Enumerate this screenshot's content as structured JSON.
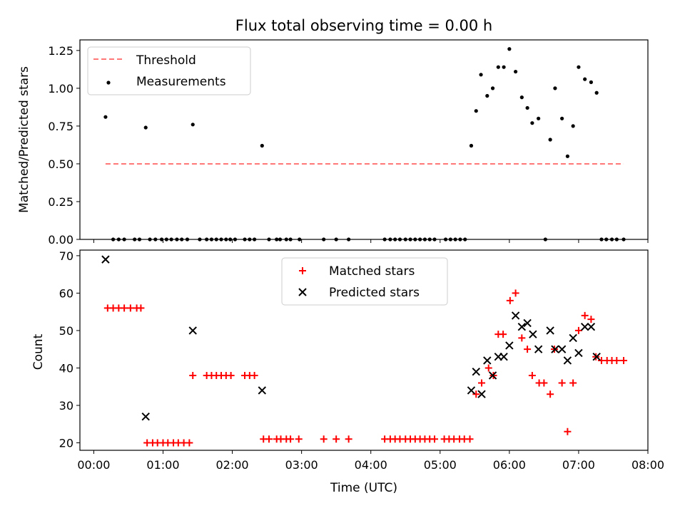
{
  "chart_data": [
    {
      "type": "scatter",
      "title": "Flux total observing time = 0.00 h",
      "xlabel": "",
      "ylabel": "Matched/Predicted stars",
      "xlim": [
        -0.2,
        8.0
      ],
      "ylim": [
        0.0,
        1.32
      ],
      "yticks": [
        0.0,
        0.25,
        0.5,
        0.75,
        1.0,
        1.25
      ],
      "ytick_labels": [
        "0.00",
        "0.25",
        "0.50",
        "0.75",
        "1.00",
        "1.25"
      ],
      "grid": false,
      "legend_position": "upper left",
      "threshold": {
        "name": "Threshold",
        "value": 0.5,
        "x_start": 0.17,
        "x_end": 7.65,
        "color": "#ff7777"
      },
      "measurements": {
        "name": "Measurements",
        "color": "#000000",
        "x": [
          0.17,
          0.28,
          0.36,
          0.44,
          0.59,
          0.66,
          0.75,
          0.81,
          0.89,
          0.98,
          1.05,
          1.12,
          1.2,
          1.27,
          1.35,
          1.43,
          1.53,
          1.63,
          1.7,
          1.77,
          1.84,
          1.91,
          1.97,
          2.04,
          2.18,
          2.25,
          2.32,
          2.43,
          2.53,
          2.64,
          2.69,
          2.78,
          2.84,
          2.97,
          3.32,
          3.5,
          3.68,
          4.2,
          4.28,
          4.35,
          4.42,
          4.5,
          4.57,
          4.64,
          4.71,
          4.78,
          4.85,
          4.92,
          5.08,
          5.15,
          5.22,
          5.29,
          5.36,
          5.45,
          5.52,
          5.59,
          5.68,
          5.76,
          5.84,
          5.92,
          6.0,
          6.09,
          6.18,
          6.26,
          6.33,
          6.42,
          6.52,
          6.59,
          6.66,
          6.76,
          6.84,
          6.92,
          7.0,
          7.09,
          7.18,
          7.26,
          7.33,
          7.4,
          7.48,
          7.55,
          7.65
        ],
        "y": [
          0.81,
          0.0,
          0.0,
          0.0,
          0.0,
          0.0,
          0.74,
          0.0,
          0.0,
          0.0,
          0.0,
          0.0,
          0.0,
          0.0,
          0.0,
          0.76,
          0.0,
          0.0,
          0.0,
          0.0,
          0.0,
          0.0,
          0.0,
          0.0,
          0.0,
          0.0,
          0.0,
          0.62,
          0.0,
          0.0,
          0.0,
          0.0,
          0.0,
          0.0,
          0.0,
          0.0,
          0.0,
          0.0,
          0.0,
          0.0,
          0.0,
          0.0,
          0.0,
          0.0,
          0.0,
          0.0,
          0.0,
          0.0,
          0.0,
          0.0,
          0.0,
          0.0,
          0.0,
          0.62,
          0.85,
          1.09,
          0.95,
          1.0,
          1.14,
          1.14,
          1.26,
          1.11,
          0.94,
          0.87,
          0.77,
          0.8,
          0.0,
          0.66,
          1.0,
          0.8,
          0.55,
          0.75,
          1.14,
          1.06,
          1.04,
          0.97,
          0.0,
          0.0,
          0.0,
          0.0,
          0.0
        ]
      }
    },
    {
      "type": "scatter",
      "title": "",
      "xlabel": "Time (UTC)",
      "ylabel": "Count",
      "xlim": [
        -0.2,
        8.0
      ],
      "ylim": [
        18,
        71.5
      ],
      "xticks": [
        0,
        1,
        2,
        3,
        4,
        5,
        6,
        7,
        8
      ],
      "xtick_labels": [
        "00:00",
        "01:00",
        "02:00",
        "03:00",
        "04:00",
        "05:00",
        "06:00",
        "07:00",
        "08:00"
      ],
      "yticks": [
        20,
        30,
        40,
        50,
        60,
        70
      ],
      "ytick_labels": [
        "20",
        "30",
        "40",
        "50",
        "60",
        "70"
      ],
      "grid": false,
      "legend_position": "upper center",
      "series": [
        {
          "name": "Matched stars",
          "marker": "+",
          "color": "#ff0000",
          "x": [
            0.2,
            0.28,
            0.36,
            0.44,
            0.53,
            0.62,
            0.68,
            0.77,
            0.85,
            0.92,
            1.0,
            1.07,
            1.15,
            1.22,
            1.3,
            1.38,
            1.43,
            1.63,
            1.7,
            1.77,
            1.84,
            1.91,
            1.98,
            2.18,
            2.25,
            2.32,
            2.45,
            2.53,
            2.64,
            2.7,
            2.78,
            2.84,
            2.96,
            3.32,
            3.5,
            3.68,
            4.2,
            4.28,
            4.35,
            4.42,
            4.5,
            4.57,
            4.64,
            4.71,
            4.78,
            4.85,
            4.92,
            5.06,
            5.13,
            5.2,
            5.28,
            5.35,
            5.43,
            5.52,
            5.6,
            5.7,
            5.77,
            5.84,
            5.91,
            6.01,
            6.09,
            6.18,
            6.26,
            6.33,
            6.43,
            6.5,
            6.59,
            6.65,
            6.76,
            6.84,
            6.92,
            7.0,
            7.09,
            7.18,
            7.25,
            7.33,
            7.41,
            7.48,
            7.55,
            7.65
          ],
          "y": [
            56,
            56,
            56,
            56,
            56,
            56,
            56,
            20,
            20,
            20,
            20,
            20,
            20,
            20,
            20,
            20,
            38,
            38,
            38,
            38,
            38,
            38,
            38,
            38,
            38,
            38,
            21,
            21,
            21,
            21,
            21,
            21,
            21,
            21,
            21,
            21,
            21,
            21,
            21,
            21,
            21,
            21,
            21,
            21,
            21,
            21,
            21,
            21,
            21,
            21,
            21,
            21,
            21,
            33,
            36,
            40,
            38,
            49,
            49,
            58,
            60,
            48,
            45,
            38,
            36,
            36,
            33,
            45,
            36,
            23,
            36,
            50,
            54,
            53,
            43,
            42,
            42,
            42,
            42,
            42
          ]
        },
        {
          "name": "Predicted stars",
          "marker": "x",
          "color": "#000000",
          "x": [
            0.17,
            0.75,
            1.43,
            2.43,
            5.45,
            5.52,
            5.6,
            5.68,
            5.76,
            5.84,
            5.92,
            6.0,
            6.09,
            6.18,
            6.26,
            6.34,
            6.42,
            6.59,
            6.66,
            6.76,
            6.84,
            6.92,
            7.0,
            7.09,
            7.18,
            7.26
          ],
          "y": [
            69,
            27,
            50,
            34,
            34,
            39,
            33,
            42,
            38,
            43,
            43,
            46,
            54,
            51,
            52,
            49,
            45,
            50,
            45,
            45,
            42,
            48,
            44,
            51,
            51,
            43
          ]
        }
      ]
    }
  ]
}
